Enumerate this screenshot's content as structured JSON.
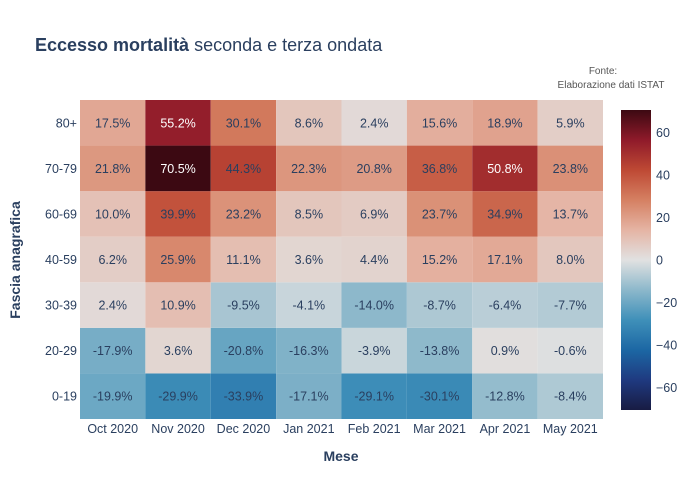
{
  "title_bold": "Eccesso mortalità",
  "title_rest": " seconda e terza ondata",
  "source": [
    "Fonte:",
    "Elaborazione dati ISTAT"
  ],
  "chart_data": {
    "type": "heatmap",
    "xlabel": "Mese",
    "ylabel": "Fascia anagrafica",
    "x": [
      "Oct 2020",
      "Nov 2020",
      "Dec 2020",
      "Jan 2021",
      "Feb 2021",
      "Mar 2021",
      "Apr 2021",
      "May 2021"
    ],
    "y": [
      "0-19",
      "20-29",
      "30-39",
      "40-59",
      "60-69",
      "70-79",
      "80+"
    ],
    "values": [
      [
        -19.9,
        -29.9,
        -33.9,
        -17.1,
        -29.1,
        -30.1,
        -12.8,
        -8.4
      ],
      [
        -17.9,
        3.6,
        -20.8,
        -16.3,
        -3.9,
        -13.8,
        0.9,
        -0.6
      ],
      [
        2.4,
        10.9,
        -9.5,
        -4.1,
        -14.0,
        -8.7,
        -6.4,
        -7.7
      ],
      [
        6.2,
        25.9,
        11.1,
        3.6,
        4.4,
        15.2,
        17.1,
        8.0
      ],
      [
        10.0,
        39.9,
        23.2,
        8.5,
        6.9,
        23.7,
        34.9,
        13.7
      ],
      [
        21.8,
        70.5,
        44.3,
        22.3,
        20.8,
        36.8,
        50.8,
        23.8
      ],
      [
        17.5,
        55.2,
        30.1,
        8.6,
        2.4,
        15.6,
        18.9,
        5.9
      ]
    ],
    "value_suffix": "%",
    "zrange": [
      -70.5,
      70.5
    ],
    "colorscale": "balance",
    "colorbar_ticks": [
      60,
      40,
      20,
      0,
      -20,
      -40,
      -60
    ]
  }
}
